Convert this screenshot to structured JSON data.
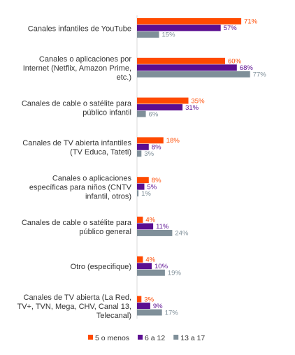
{
  "chart_data": {
    "type": "bar",
    "orientation": "horizontal",
    "categories": [
      [
        "Canales infantiles de YouTube"
      ],
      [
        "Canales o aplicaciones por",
        "Internet (Netflix, Amazon Prime,",
        "etc.)"
      ],
      [
        "Canales de cable o satélite para",
        "público infantil"
      ],
      [
        "Canales de TV abierta infantiles",
        "(TV Educa, Tateti)"
      ],
      [
        "Canales o aplicaciones",
        "específicas para niños (CNTV",
        "infantil, otros)"
      ],
      [
        "Canales de cable o satélite para",
        "público general"
      ],
      [
        "Otro (especifique)"
      ],
      [
        "Canales de TV abierta (La Red,",
        "TV+, TVN, Mega, CHV, Canal 13,",
        "Telecanal)"
      ]
    ],
    "series": [
      {
        "name": "5 o menos",
        "color": "#FF4A00",
        "values": [
          71,
          60,
          35,
          18,
          8,
          4,
          4,
          3
        ],
        "labels": [
          "71%",
          "60%",
          "35%",
          "18%",
          "8%",
          "4%",
          "4%",
          "3%"
        ]
      },
      {
        "name": "6 a 12",
        "color": "#5B0E91",
        "values": [
          57,
          68,
          31,
          8,
          5,
          11,
          10,
          9
        ],
        "labels": [
          "57%",
          "68%",
          "31%",
          "8%",
          "5%",
          "11%",
          "10%",
          "9%"
        ]
      },
      {
        "name": "13 a 17",
        "color": "#7F8F99",
        "values": [
          15,
          77,
          6,
          3,
          1,
          24,
          19,
          17
        ],
        "labels": [
          "15%",
          "77%",
          "6%",
          "3%",
          "1%",
          "24%",
          "19%",
          "17%"
        ]
      }
    ],
    "xlim": [
      0,
      100
    ],
    "grid": false,
    "legend_position": "bottom"
  }
}
